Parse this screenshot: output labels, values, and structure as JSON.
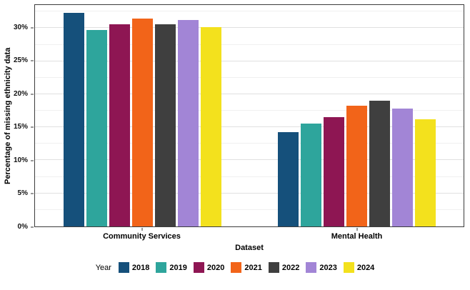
{
  "chart_data": {
    "type": "bar",
    "title": "",
    "xlabel": "Dataset",
    "ylabel": "Percentage of missing ethnicity data",
    "legend_title": "Year",
    "legend_position": "bottom",
    "grid": true,
    "categories": [
      "Community Services",
      "Mental Health"
    ],
    "series": [
      {
        "name": "2018",
        "color": "#15507B",
        "values": [
          32.3,
          14.3
        ]
      },
      {
        "name": "2019",
        "color": "#2EA59C",
        "values": [
          29.7,
          15.6
        ]
      },
      {
        "name": "2020",
        "color": "#8E1653",
        "values": [
          30.6,
          16.5
        ]
      },
      {
        "name": "2021",
        "color": "#F26419",
        "values": [
          31.5,
          18.3
        ]
      },
      {
        "name": "2022",
        "color": "#3F3F3F",
        "values": [
          30.6,
          19.0
        ]
      },
      {
        "name": "2023",
        "color": "#A285D6",
        "values": [
          31.2,
          17.8
        ]
      },
      {
        "name": "2024",
        "color": "#F3E11D",
        "values": [
          30.2,
          16.2
        ]
      }
    ],
    "y_ticks": [
      "0%",
      "5%",
      "10%",
      "15%",
      "20%",
      "25%",
      "30%"
    ],
    "y_tick_values": [
      0,
      5,
      10,
      15,
      20,
      25,
      30
    ],
    "y_minor_values": [
      2.5,
      7.5,
      12.5,
      17.5,
      22.5,
      27.5,
      32.5
    ],
    "ylim": [
      0,
      33.5
    ]
  }
}
